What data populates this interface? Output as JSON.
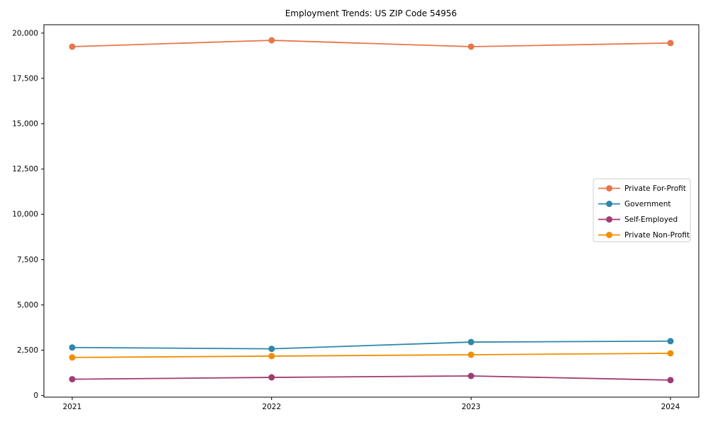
{
  "chart_data": {
    "type": "line",
    "title": "Employment Trends: US ZIP Code 54956",
    "categories": [
      "2021",
      "2022",
      "2023",
      "2024"
    ],
    "series": [
      {
        "name": "Private For-Profit",
        "color": "#E8764A",
        "values": [
          19250,
          19600,
          19250,
          19450
        ]
      },
      {
        "name": "Government",
        "color": "#2E86AB",
        "values": [
          2650,
          2575,
          2950,
          3000
        ]
      },
      {
        "name": "Self-Employed",
        "color": "#A23B72",
        "values": [
          900,
          1000,
          1080,
          850
        ]
      },
      {
        "name": "Private Non-Profit",
        "color": "#F18F01",
        "values": [
          2100,
          2175,
          2250,
          2330
        ]
      }
    ],
    "xlabel": "",
    "ylabel": "",
    "y_ticks": [
      0,
      2500,
      5000,
      7500,
      10000,
      12500,
      15000,
      17500,
      20000
    ],
    "y_tick_labels": [
      "0",
      "2,500",
      "5,000",
      "7,500",
      "10,000",
      "12,500",
      "15,000",
      "17,500",
      "20,000"
    ],
    "ylim": [
      -90,
      20460
    ],
    "grid": false,
    "legend_position": "right-middle",
    "marker": "circle",
    "axis_color": "#000000",
    "legend_border_color": "#cccccc",
    "background": "#ffffff"
  }
}
